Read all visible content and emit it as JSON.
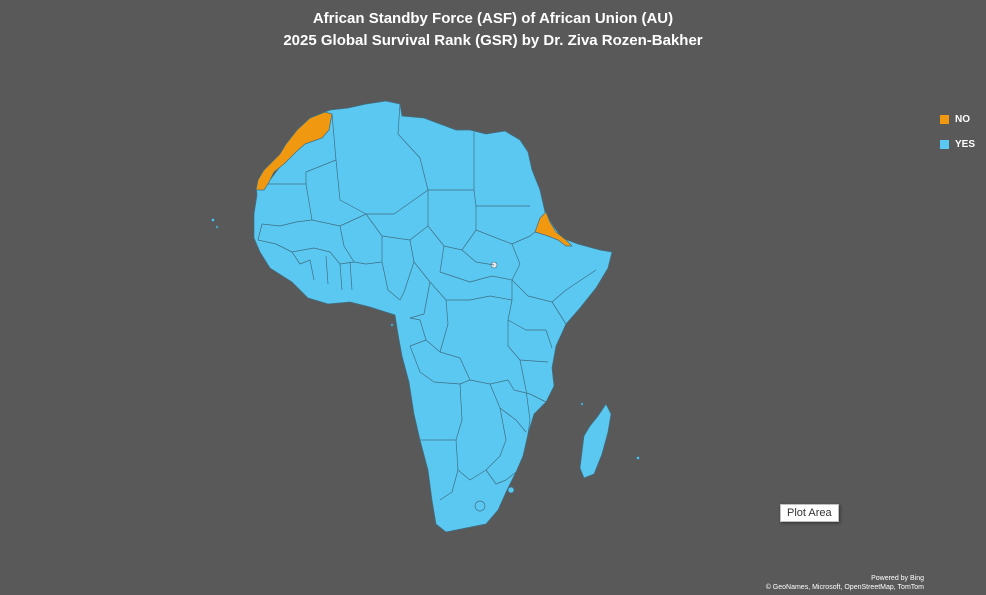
{
  "chart": {
    "title_line1": "African Standby Force (ASF) of African Union (AU)",
    "title_line2": "2025 Global Survival Rank (GSR) by Dr. Ziva Rozen-Bakher"
  },
  "legend": {
    "items": [
      {
        "label": "NO",
        "color": "#f0980f"
      },
      {
        "label": "YES",
        "color": "#5bc8f2"
      }
    ],
    "placement": "right"
  },
  "map_data": {
    "region": "Africa",
    "categories": [
      "NO",
      "YES"
    ],
    "highlighted_no": [
      "Morocco",
      "Western Sahara",
      "Eritrea"
    ],
    "background_color": "#595959"
  },
  "tooltip": {
    "label": "Plot Area"
  },
  "attribution": {
    "line1": "Powered by Bing",
    "line2": "© GeoNames, Microsoft, OpenStreetMap, TomTom"
  }
}
